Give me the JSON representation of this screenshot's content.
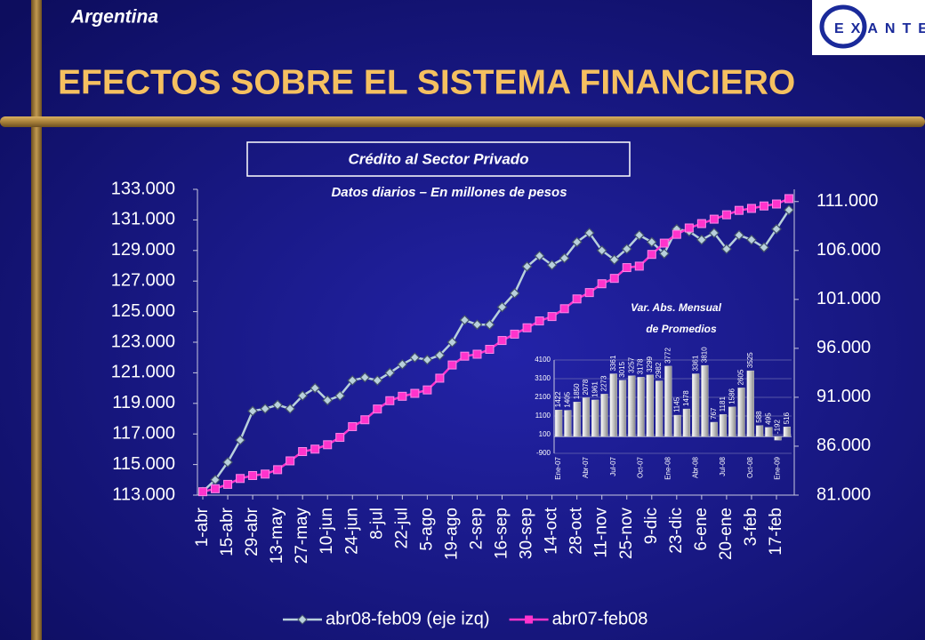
{
  "header": {
    "country": "Argentina",
    "title": "EFECTOS SOBRE EL SISTEMA FINANCIERO",
    "logo": "EXANTE"
  },
  "chart_data": [
    {
      "type": "line",
      "title": "Crédito al Sector Privado",
      "subtitle": "Datos diarios – En millones de pesos",
      "categories": [
        "1-abr",
        null,
        "15-abr",
        null,
        "29-abr",
        null,
        "13-may",
        null,
        "27-may",
        null,
        "10-jun",
        null,
        "24-jun",
        null,
        "8-jul",
        null,
        "22-jul",
        null,
        "5-ago",
        null,
        "19-ago",
        null,
        "2-sep",
        null,
        "16-sep",
        null,
        "30-sep",
        null,
        "14-oct",
        null,
        "28-oct",
        null,
        "11-nov",
        null,
        "25-nov",
        null,
        "9-dic",
        null,
        "23-dic",
        null,
        "6-ene",
        null,
        "20-ene",
        null,
        "3-feb",
        null,
        "17-feb",
        null
      ],
      "series": [
        {
          "name": "abr08-feb09 (eje izq)",
          "color": "#b8d0dc",
          "marker": "diamond",
          "values": [
            113230,
            114000,
            115150,
            116600,
            118500,
            118650,
            118900,
            118650,
            119500,
            120000,
            119200,
            119500,
            120500,
            120700,
            120500,
            121000,
            121550,
            122000,
            121850,
            122150,
            123000,
            124450,
            124150,
            124150,
            125300,
            126200,
            127950,
            128650,
            128050,
            128500,
            129550,
            130150,
            129000,
            128400,
            129100,
            130000,
            129550,
            128800,
            130400,
            130250,
            129700,
            130150,
            129100,
            130000,
            129700,
            129200,
            130400,
            131650
          ]
        },
        {
          "name": "abr07-feb08",
          "color": "#ff33cc",
          "marker": "square",
          "axis": "y2",
          "values": [
            81350,
            81650,
            82100,
            82700,
            83000,
            83150,
            83600,
            84500,
            85450,
            85700,
            86150,
            86900,
            88000,
            88700,
            89800,
            90650,
            91100,
            91400,
            91750,
            92950,
            94300,
            95200,
            95400,
            95900,
            96800,
            97450,
            98100,
            98800,
            99250,
            100050,
            101050,
            101700,
            102600,
            103150,
            104250,
            104400,
            105600,
            106750,
            107650,
            108300,
            108750,
            109200,
            109650,
            110100,
            110300,
            110550,
            110750,
            111300
          ]
        }
      ],
      "ylim": [
        113000,
        133000
      ],
      "yticks": [
        {
          "value": 113000,
          "label": "113.000"
        },
        {
          "value": 115000,
          "label": "115.000"
        },
        {
          "value": 117000,
          "label": "117.000"
        },
        {
          "value": 119000,
          "label": "119.000"
        },
        {
          "value": 121000,
          "label": "121.000"
        },
        {
          "value": 123000,
          "label": "123.000"
        },
        {
          "value": 125000,
          "label": "125.000"
        },
        {
          "value": 127000,
          "label": "127.000"
        },
        {
          "value": 129000,
          "label": "129.000"
        },
        {
          "value": 131000,
          "label": "131.000"
        },
        {
          "value": 133000,
          "label": "133.000"
        }
      ],
      "y2lim": [
        81000,
        112250
      ],
      "y2ticks": [
        {
          "value": 81000,
          "label": "81.000"
        },
        {
          "value": 86000,
          "label": "86.000"
        },
        {
          "value": 91000,
          "label": "91.000"
        },
        {
          "value": 96000,
          "label": "96.000"
        },
        {
          "value": 101000,
          "label": "101.000"
        },
        {
          "value": 106000,
          "label": "106.000"
        },
        {
          "value": 111000,
          "label": "111.000"
        }
      ],
      "legend": "bottom",
      "grid": false
    },
    {
      "type": "bar",
      "title": "Var. Abs. Mensual",
      "subtitle": "de Promedios",
      "categories": [
        "Ene-07",
        null,
        null,
        "Abr-07",
        null,
        null,
        "Jul-07",
        null,
        null,
        "Oct-07",
        null,
        null,
        "Ene-08",
        null,
        null,
        "Abr-08",
        null,
        null,
        "Jul-08",
        null,
        null,
        "Oct-08",
        null,
        null,
        "Ene-09",
        null
      ],
      "values": [
        1422,
        1405,
        1850,
        2078,
        1961,
        2273,
        3361,
        3015,
        3257,
        3178,
        3299,
        2982,
        3772,
        1145,
        1478,
        3361,
        3810,
        767,
        1181,
        1586,
        2605,
        3525,
        588,
        495,
        -192,
        516
      ],
      "color": "#d4d4d4",
      "ylim": [
        -900,
        4100
      ],
      "yticks": [
        -900,
        100,
        1100,
        2100,
        3100,
        4100
      ],
      "grid": true
    }
  ]
}
